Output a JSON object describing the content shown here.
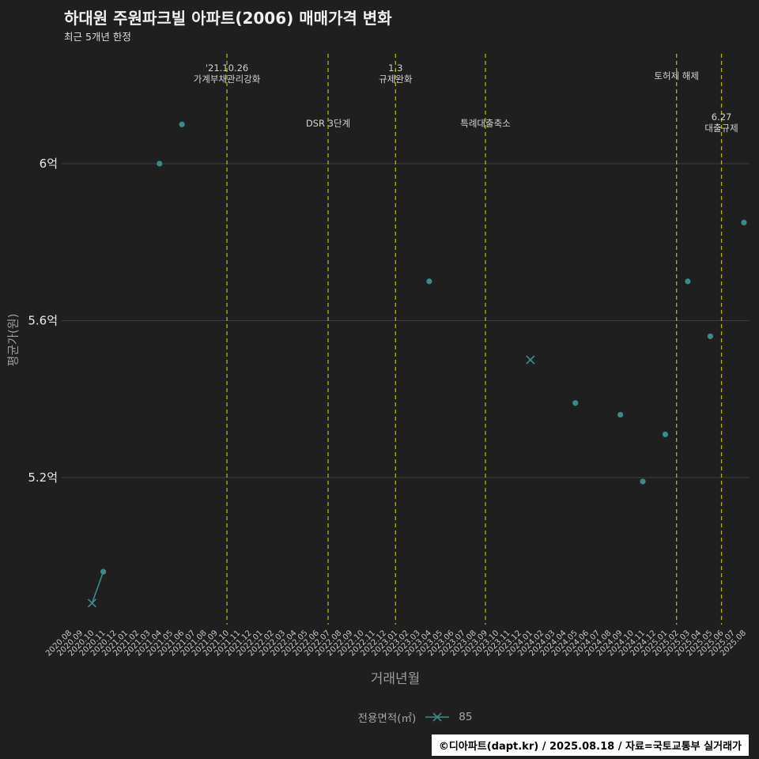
{
  "header": {
    "title": "하대원 주원파크빌 아파트(2006) 매매가격 변화",
    "subtitle": "최근 5개년 한정"
  },
  "axes": {
    "y_title": "평균가(원)",
    "x_title": "거래년월"
  },
  "legend": {
    "title": "전용면적(㎡)",
    "marker": "teal-x-with-line",
    "series_label": "85"
  },
  "footer": {
    "text": "©디아파트(dapt.kr) / 2025.08.18 / 자료=국토교통부 실거래가"
  },
  "colors": {
    "background": "#1f1f1f",
    "series_teal": "#3c8a88",
    "event_line_yellow": "#b0b018",
    "grid": "#3c3c3c",
    "footer_bg": "#ffffff"
  },
  "chart_data": {
    "type": "scatter",
    "title": "하대원 주원파크빌 아파트(2006) 매매가격 변화",
    "subtitle": "최근 5개년 한정",
    "xlabel": "거래년월",
    "ylabel": "평균가(원)",
    "unit": "억 원",
    "ylim": [
      4.83,
      6.28
    ],
    "grid": "horizontal-only",
    "legend_position": "bottom-center",
    "y_ticks": [
      {
        "label": "6억",
        "value": 6.0
      },
      {
        "label": "5.6억",
        "value": 5.6
      },
      {
        "label": "5.2억",
        "value": 5.2
      }
    ],
    "x_categories": [
      "2020.08",
      "2020.09",
      "2020.10",
      "2020.11",
      "2020.12",
      "2021.01",
      "2021.02",
      "2021.03",
      "2021.04",
      "2021.05",
      "2021.06",
      "2021.07",
      "2021.08",
      "2021.09",
      "2021.10",
      "2021.11",
      "2021.12",
      "2022.01",
      "2022.02",
      "2022.03",
      "2022.04",
      "2022.05",
      "2022.06",
      "2022.07",
      "2022.08",
      "2022.09",
      "2022.10",
      "2022.11",
      "2022.12",
      "2023.01",
      "2023.02",
      "2023.03",
      "2023.04",
      "2023.05",
      "2023.06",
      "2023.07",
      "2023.08",
      "2023.09",
      "2023.10",
      "2023.11",
      "2023.12",
      "2024.01",
      "2024.02",
      "2024.03",
      "2024.04",
      "2024.05",
      "2024.06",
      "2024.07",
      "2024.08",
      "2024.09",
      "2024.10",
      "2024.11",
      "2024.12",
      "2025.01",
      "2025.02",
      "2025.03",
      "2025.04",
      "2025.05",
      "2025.06",
      "2025.07",
      "2025.08"
    ],
    "series": [
      {
        "name": "85",
        "points": [
          {
            "x": "2020.10",
            "y": 4.88,
            "marker": "x"
          },
          {
            "x": "2020.11",
            "y": 4.96,
            "marker": "circle"
          },
          {
            "x": "2021.04",
            "y": 6.0,
            "marker": "circle"
          },
          {
            "x": "2021.06",
            "y": 6.1,
            "marker": "circle"
          },
          {
            "x": "2023.04",
            "y": 5.7,
            "marker": "circle"
          },
          {
            "x": "2024.01",
            "y": 5.5,
            "marker": "x"
          },
          {
            "x": "2024.05",
            "y": 5.39,
            "marker": "circle"
          },
          {
            "x": "2024.09",
            "y": 5.36,
            "marker": "circle"
          },
          {
            "x": "2024.11",
            "y": 5.19,
            "marker": "circle"
          },
          {
            "x": "2025.01",
            "y": 5.31,
            "marker": "circle"
          },
          {
            "x": "2025.03",
            "y": 5.7,
            "marker": "circle"
          },
          {
            "x": "2025.05",
            "y": 5.56,
            "marker": "circle"
          },
          {
            "x": "2025.08",
            "y": 5.85,
            "marker": "circle"
          }
        ],
        "segments": [
          [
            "2020.10",
            "2020.11"
          ]
        ]
      }
    ],
    "events": [
      {
        "month": "2021.10",
        "lines": [
          "'21.10.26",
          "가계부채관리강화"
        ],
        "row": "top"
      },
      {
        "month": "2022.07",
        "lines": [
          "DSR 3단계"
        ],
        "row": "mid"
      },
      {
        "month": "2023.01",
        "lines": [
          "1.3",
          "규제완화"
        ],
        "row": "top"
      },
      {
        "month": "2023.09",
        "lines": [
          "특례대출축소"
        ],
        "row": "mid"
      },
      {
        "month": "2025.02",
        "lines": [
          "토허제 해제"
        ],
        "row": "top"
      },
      {
        "month": "2025.06",
        "lines": [
          "6.27",
          "대출규제"
        ],
        "row": "mid"
      }
    ]
  }
}
